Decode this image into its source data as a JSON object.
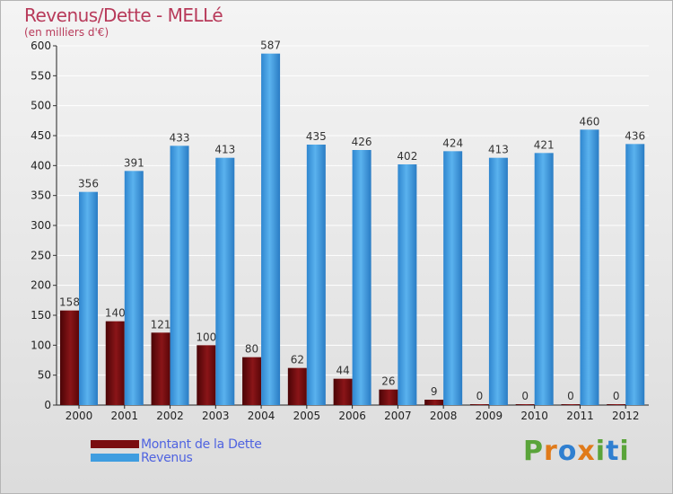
{
  "header": {
    "title": "Revenus/Dette - MELLé",
    "subtitle": "(en milliers d'€)"
  },
  "legend": {
    "items": [
      {
        "label": "Montant de la Dette",
        "color": "#7a0d10"
      },
      {
        "label": "Revenus",
        "color": "#3f9de0"
      }
    ]
  },
  "logo": {
    "text": "Proxiti",
    "letters": [
      {
        "ch": "P",
        "color": "#5aa43a"
      },
      {
        "ch": "r",
        "color": "#e07a1a"
      },
      {
        "ch": "o",
        "color": "#2f7fd0"
      },
      {
        "ch": "x",
        "color": "#e07a1a"
      },
      {
        "ch": "i",
        "color": "#5aa43a"
      },
      {
        "ch": "t",
        "color": "#2f7fd0"
      },
      {
        "ch": "i",
        "color": "#5aa43a"
      }
    ]
  },
  "chart_data": {
    "type": "bar",
    "title": "Revenus/Dette - MELLé",
    "subtitle": "(en milliers d'€)",
    "categories": [
      "2000",
      "2001",
      "2002",
      "2003",
      "2004",
      "2005",
      "2006",
      "2007",
      "2008",
      "2009",
      "2010",
      "2011",
      "2012"
    ],
    "series": [
      {
        "name": "Montant de la Dette",
        "color": "#7a0d10",
        "values": [
          158,
          140,
          121,
          100,
          80,
          62,
          44,
          26,
          9,
          0,
          0,
          0,
          0
        ]
      },
      {
        "name": "Revenus",
        "color": "#3f9de0",
        "values": [
          356,
          391,
          433,
          413,
          587,
          435,
          426,
          402,
          424,
          413,
          421,
          460,
          436
        ]
      }
    ],
    "ylim": [
      0,
      600
    ],
    "yticks": [
      0,
      50,
      100,
      150,
      200,
      250,
      300,
      350,
      400,
      450,
      500,
      550,
      600
    ],
    "grid": true,
    "legend_position": "bottom-left"
  }
}
